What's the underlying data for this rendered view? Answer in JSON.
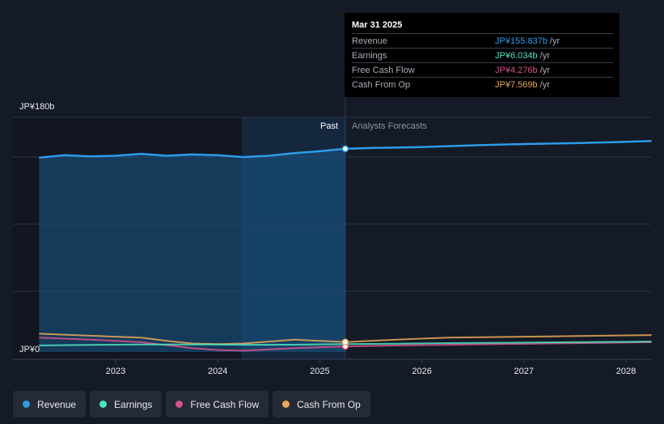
{
  "chart_data": {
    "type": "line",
    "x_axis": {
      "ticks": [
        "2023",
        "2024",
        "2025",
        "2026",
        "2027",
        "2028"
      ],
      "range": [
        2022.25,
        2028.25
      ]
    },
    "y_axis": {
      "top_label": "JP¥180b",
      "bottom_label": "JP¥0",
      "range": [
        -5,
        180
      ]
    },
    "regions": {
      "past": "Past",
      "forecast": "Analysts Forecasts",
      "split_x": 2025.25
    },
    "series": [
      {
        "name": "Revenue",
        "color": "#2d9be8",
        "x": [
          2022.25,
          2022.5,
          2022.75,
          2023.0,
          2023.25,
          2023.5,
          2023.75,
          2024.0,
          2024.25,
          2024.5,
          2024.75,
          2025.0,
          2025.25,
          2025.5,
          2026.0,
          2026.5,
          2027.0,
          2027.5,
          2028.0,
          2028.25
        ],
        "y": [
          149,
          151,
          150,
          150.5,
          152,
          150.5,
          151.5,
          151,
          149.5,
          150.5,
          152.5,
          154,
          155.837,
          156.5,
          157.2,
          158.5,
          159.5,
          160.2,
          161.2,
          161.8
        ]
      },
      {
        "name": "Earnings",
        "color": "#50e3c2",
        "x": [
          2022.25,
          2022.75,
          2023.25,
          2023.75,
          2024.25,
          2024.75,
          2025.25,
          2025.75,
          2026.25,
          2026.75,
          2027.25,
          2027.75,
          2028.25
        ],
        "y": [
          5.0,
          5.4,
          5.7,
          5.8,
          5.5,
          5.6,
          6.034,
          6.4,
          6.8,
          7.1,
          7.4,
          7.7,
          8.0
        ]
      },
      {
        "name": "Free Cash Flow",
        "color": "#d6538a",
        "x": [
          2022.25,
          2022.75,
          2023.25,
          2023.75,
          2024.0,
          2024.25,
          2024.75,
          2025.25,
          2025.75,
          2026.25,
          2026.75,
          2027.25,
          2027.75,
          2028.25
        ],
        "y": [
          11.0,
          9.5,
          7.5,
          3.0,
          1.5,
          1.0,
          3.0,
          4.276,
          5.0,
          5.5,
          6.0,
          6.5,
          7.0,
          7.5
        ]
      },
      {
        "name": "Cash From Op",
        "color": "#e8a858",
        "x": [
          2022.25,
          2022.75,
          2023.25,
          2023.5,
          2023.75,
          2024.0,
          2024.25,
          2024.5,
          2024.75,
          2025.0,
          2025.25,
          2025.75,
          2026.25,
          2026.75,
          2027.25,
          2027.75,
          2028.25
        ],
        "y": [
          14.0,
          12.5,
          11.0,
          8.5,
          6.5,
          6.0,
          6.5,
          8.0,
          9.5,
          8.5,
          7.569,
          9.5,
          11.0,
          11.5,
          12.0,
          12.5,
          13.0
        ]
      }
    ]
  },
  "tooltip": {
    "date": "Mar 31 2025",
    "rows": [
      {
        "label": "Revenue",
        "value": "JP¥155.837b",
        "unit": "/yr",
        "color": "#2d9be8"
      },
      {
        "label": "Earnings",
        "value": "JP¥6.034b",
        "unit": "/yr",
        "color": "#50e3c2"
      },
      {
        "label": "Free Cash Flow",
        "value": "JP¥4.276b",
        "unit": "/yr",
        "color": "#d6538a"
      },
      {
        "label": "Cash From Op",
        "value": "JP¥7.569b",
        "unit": "/yr",
        "color": "#e8a858"
      }
    ]
  },
  "legend": [
    {
      "label": "Revenue",
      "color": "#2d9be8"
    },
    {
      "label": "Earnings",
      "color": "#50e3c2"
    },
    {
      "label": "Free Cash Flow",
      "color": "#d6538a"
    },
    {
      "label": "Cash From Op",
      "color": "#e8a858"
    }
  ]
}
